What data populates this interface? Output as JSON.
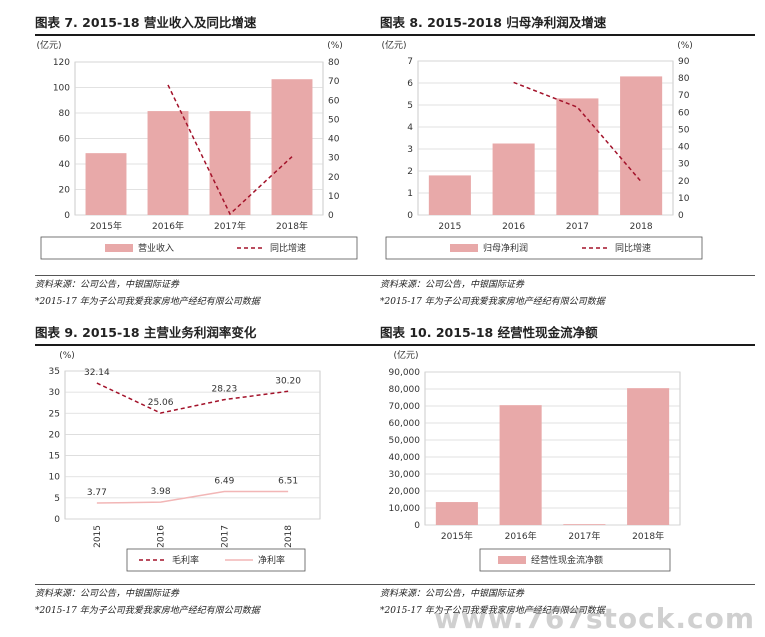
{
  "panels": [
    {
      "title": "图表 7. 2015-18 营业收入及同比增速",
      "source": "资料来源：公司公告，中银国际证券",
      "note": "*2015-17 年为子公司我爱我家房地产经纪有限公司数据"
    },
    {
      "title": "图表 8. 2015-2018 归母净利润及增速",
      "source": "资料来源：公司公告，中银国际证券",
      "note": "*2015-17 年为子公司我爱我家房地产经纪有限公司数据"
    },
    {
      "title": "图表 9. 2015-18 主营业务利润率变化",
      "source": "资料来源：公司公告，中银国际证券",
      "note": "*2015-17 年为子公司我爱我家房地产经纪有限公司数据"
    },
    {
      "title": "图表 10. 2015-18 经营性现金流净额",
      "source": "资料来源：公司公告，中银国际证券",
      "note": "*2015-17 年为子公司我爱我家房地产经纪有限公司数据"
    }
  ],
  "watermark": "www.767stock.com",
  "colors": {
    "bar": "#e8a9a9",
    "line": "#a3122a",
    "line2": "#f2b6b6",
    "grid": "#d9d9d9"
  },
  "chart_data": [
    {
      "type": "bar",
      "categories": [
        "2015年",
        "2016年",
        "2017年",
        "2018年"
      ],
      "series": [
        {
          "name": "营业收入",
          "type": "bar",
          "axis": "left",
          "values": [
            48.5,
            81.5,
            81.5,
            106.5
          ]
        },
        {
          "name": "同比增速",
          "type": "line",
          "style": "dashed",
          "axis": "right",
          "values": [
            null,
            68,
            0.5,
            30.5
          ]
        }
      ],
      "ylabel_left": "(亿元)",
      "ylabel_right": "(%)",
      "ylim_left": [
        0,
        120
      ],
      "yticks_left": [
        0,
        20,
        40,
        60,
        80,
        100,
        120
      ],
      "ylim_right": [
        0,
        80
      ],
      "yticks_right": [
        0,
        10,
        20,
        30,
        40,
        50,
        60,
        70,
        80
      ],
      "grid": true,
      "legend": "bottom"
    },
    {
      "type": "bar",
      "categories": [
        "2015",
        "2016",
        "2017",
        "2018"
      ],
      "series": [
        {
          "name": "归母净利润",
          "type": "bar",
          "axis": "left",
          "values": [
            1.8,
            3.25,
            5.3,
            6.3
          ]
        },
        {
          "name": "同比增速",
          "type": "line",
          "style": "dashed",
          "axis": "right",
          "values": [
            null,
            77.5,
            63,
            19.5
          ]
        }
      ],
      "ylabel_left": "(亿元)",
      "ylabel_right": "(%)",
      "ylim_left": [
        0,
        7
      ],
      "yticks_left": [
        0,
        1,
        2,
        3,
        4,
        5,
        6,
        7
      ],
      "ylim_right": [
        0,
        90
      ],
      "yticks_right": [
        0,
        10,
        20,
        30,
        40,
        50,
        60,
        70,
        80,
        90
      ],
      "grid": true,
      "legend": "bottom"
    },
    {
      "type": "line",
      "categories": [
        "2015",
        "2016",
        "2017",
        "2018"
      ],
      "series": [
        {
          "name": "毛利率",
          "style": "dashed",
          "values": [
            32.14,
            25.06,
            28.23,
            30.2
          ]
        },
        {
          "name": "净利率",
          "style": "solid",
          "values": [
            3.77,
            3.98,
            6.49,
            6.51
          ]
        }
      ],
      "data_labels": [
        [
          "32.14",
          "25.06",
          "28.23",
          "30.20"
        ],
        [
          "3.77",
          "3.98",
          "6.49",
          "6.51"
        ]
      ],
      "ylabel": "(%)",
      "ylim": [
        0,
        35
      ],
      "yticks": [
        0,
        5,
        10,
        15,
        20,
        25,
        30,
        35
      ],
      "grid": true,
      "legend": "bottom"
    },
    {
      "type": "bar",
      "categories": [
        "2015年",
        "2016年",
        "2017年",
        "2018年"
      ],
      "series": [
        {
          "name": "经营性现金流净额",
          "values": [
            13500,
            70500,
            500,
            80500
          ]
        }
      ],
      "ylabel": "(亿元)",
      "ylim": [
        0,
        90000
      ],
      "yticks": [
        0,
        10000,
        20000,
        30000,
        40000,
        50000,
        60000,
        70000,
        80000,
        90000
      ],
      "yticklabels": [
        "0",
        "10,000",
        "20,000",
        "30,000",
        "40,000",
        "50,000",
        "60,000",
        "70,000",
        "80,000",
        "90,000"
      ],
      "grid": true,
      "legend": "bottom"
    }
  ]
}
